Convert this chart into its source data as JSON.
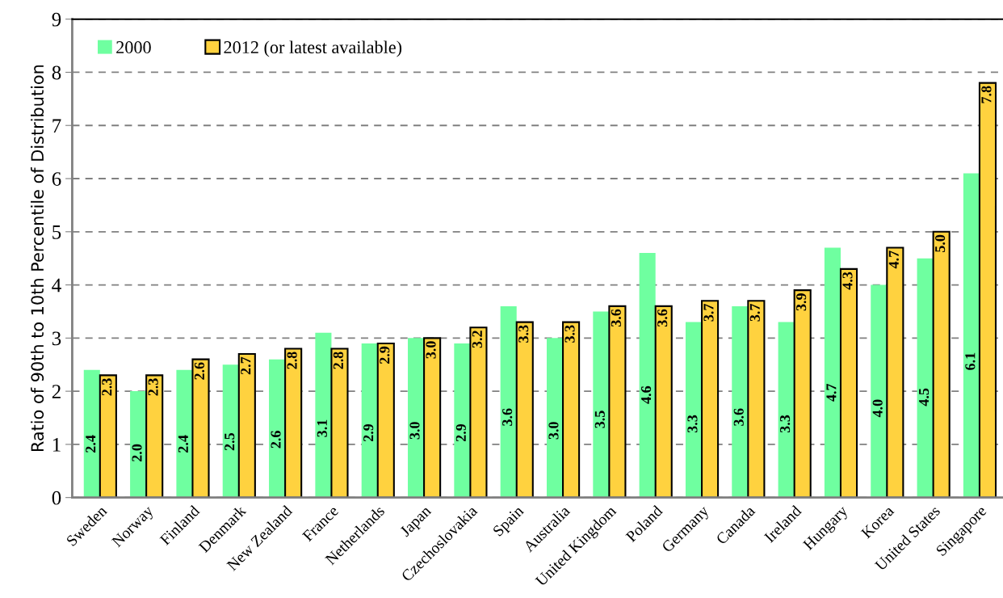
{
  "chart_data": {
    "type": "bar",
    "ylabel": "Ratio of 90th to 10th Percentile of Distribution",
    "categories": [
      "Sweden",
      "Norway",
      "Finland",
      "Denmark",
      "New Zealand",
      "France",
      "Netherlands",
      "Japan",
      "Czechoslovakia",
      "Spain",
      "Australia",
      "United Kingdom",
      "Poland",
      "Germany",
      "Canada",
      "Ireland",
      "Hungary",
      "Korea",
      "United States",
      "Singapore"
    ],
    "series": [
      {
        "name": "2000",
        "color": "#6fffa0",
        "values": [
          2.4,
          2.0,
          2.4,
          2.5,
          2.6,
          3.1,
          2.9,
          3.0,
          2.9,
          3.6,
          3.0,
          3.5,
          4.6,
          3.3,
          3.6,
          3.3,
          4.7,
          4.0,
          4.5,
          6.1
        ],
        "value_labels": [
          "2.4",
          "2.0",
          "2.4",
          "2.5",
          "2.6",
          "3.1",
          "2.9",
          "3.0",
          "2.9",
          "3.6",
          "3.0",
          "3.5",
          "4.6",
          "3.3",
          "3.6",
          "3.3",
          "4.7",
          "4.0",
          "4.5",
          "6.1"
        ]
      },
      {
        "name": "2012 (or latest available)",
        "color": "#ffd23f",
        "values": [
          2.3,
          2.3,
          2.6,
          2.7,
          2.8,
          2.8,
          2.9,
          3.0,
          3.2,
          3.3,
          3.3,
          3.6,
          3.6,
          3.7,
          3.7,
          3.9,
          4.3,
          4.7,
          5.0,
          7.8
        ],
        "value_labels": [
          "2.3",
          "2.3",
          "2.6",
          "2.7",
          "2.8",
          "2.8",
          "2.9",
          "3.0",
          "3.2",
          "3.3",
          "3.3",
          "3.6",
          "3.6",
          "3.7",
          "3.7",
          "3.9",
          "4.3",
          "4.7",
          "5.0",
          "7.8"
        ]
      }
    ],
    "ylim": [
      0,
      9
    ],
    "yticks": [
      0,
      1,
      2,
      3,
      4,
      5,
      6,
      7,
      8,
      9
    ],
    "grid": "y",
    "legend": "top left"
  }
}
